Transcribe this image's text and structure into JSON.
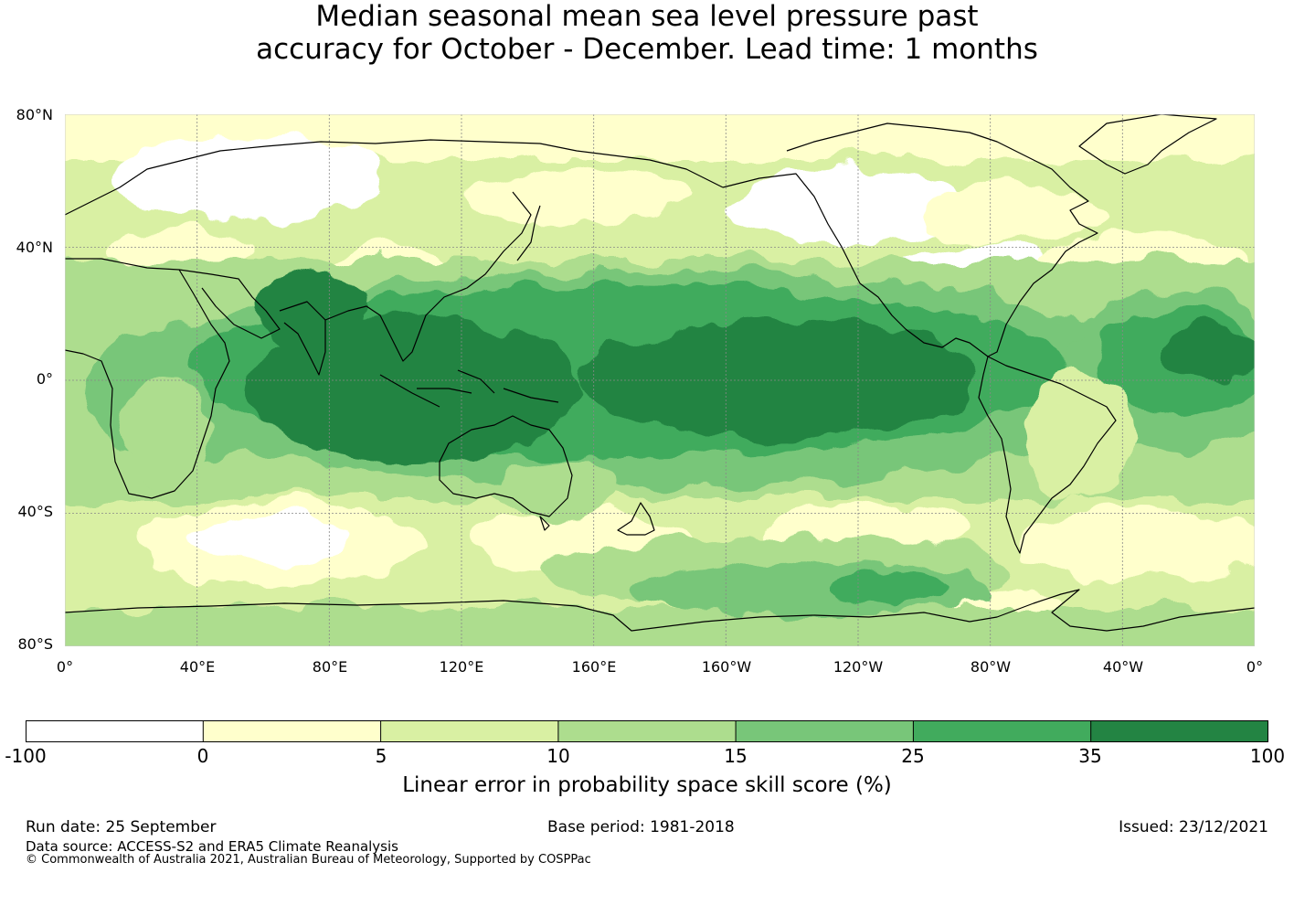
{
  "title": {
    "line1": "Median seasonal mean sea level pressure past",
    "line2": "accuracy for October - December. Lead time: 1 months"
  },
  "map": {
    "lat_labels": [
      "80°N",
      "40°N",
      "0°",
      "40°S",
      "80°S"
    ],
    "lon_labels": [
      "0°",
      "40°E",
      "80°E",
      "120°E",
      "160°E",
      "160°W",
      "120°W",
      "80°W",
      "40°W",
      "0°"
    ],
    "colors": {
      "below_0": "#ffffff",
      "0_5": "#ffffcc",
      "5_10": "#d9f0a3",
      "10_15": "#addd8e",
      "15_25": "#78c679",
      "25_35": "#41ab5d",
      "35_100": "#238443",
      "coast": "#000000"
    }
  },
  "colorbar": {
    "ticks": [
      "-100",
      "0",
      "5",
      "10",
      "15",
      "25",
      "35",
      "100"
    ],
    "colors": [
      "#ffffff",
      "#ffffcc",
      "#d9f0a3",
      "#addd8e",
      "#78c679",
      "#41ab5d",
      "#238443"
    ],
    "label": "Linear error in probability space skill score (%)"
  },
  "footer": {
    "run_date": "Run date: 25 September",
    "base_period": "Base period: 1981-2018",
    "issued": "Issued: 23/12/2021",
    "data_source": "Data source: ACCESS-S2 and ERA5 Climate Reanalysis",
    "copyright": "© Commonwealth of Australia 2021, Australian Bureau of Meteorology, Supported by COSPPac"
  }
}
